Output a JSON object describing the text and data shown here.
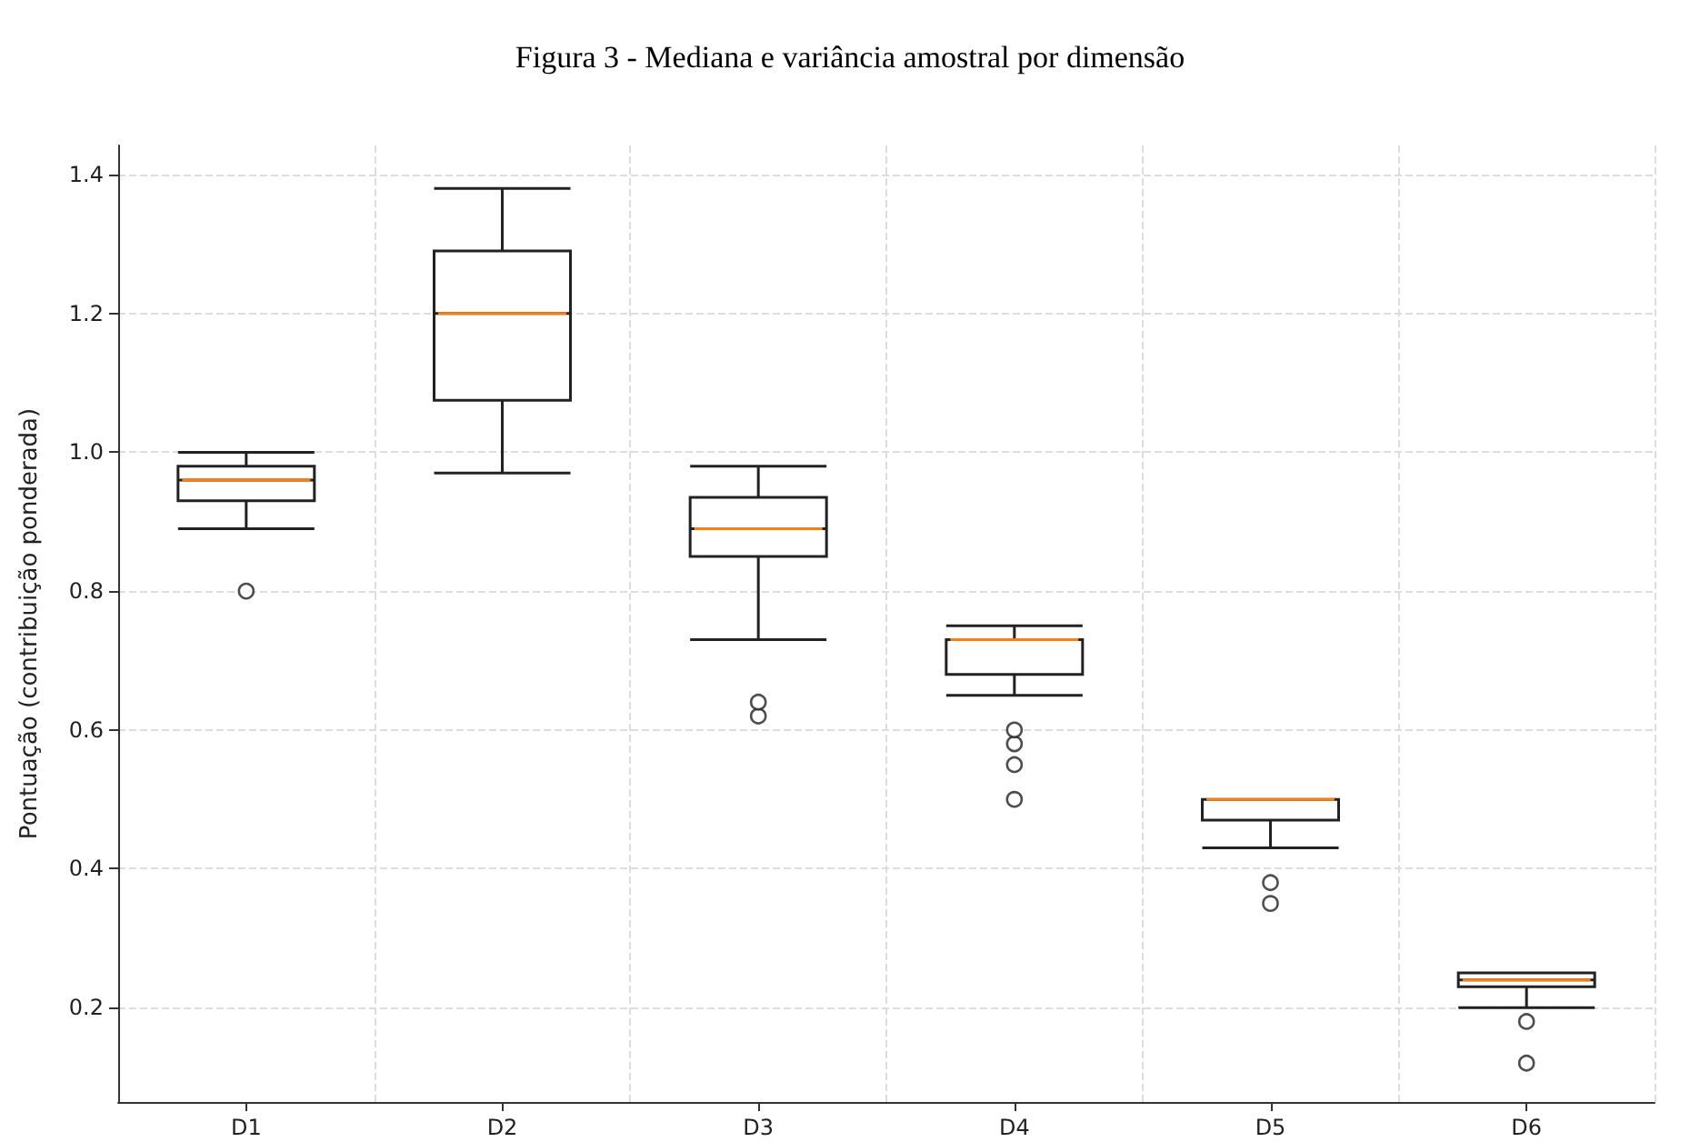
{
  "chart_data": {
    "type": "box",
    "title": "Figura 3 - Mediana e variância amostral por dimensão",
    "ylabel": "Pontuação (contribuição ponderada)",
    "categories": [
      "D1",
      "D2",
      "D3",
      "D4",
      "D5",
      "D6"
    ],
    "boxes": [
      {
        "low": 0.89,
        "q1": 0.93,
        "median": 0.96,
        "q3": 0.98,
        "high": 1.0,
        "outliers": [
          0.8
        ]
      },
      {
        "low": 0.97,
        "q1": 1.075,
        "median": 1.2,
        "q3": 1.29,
        "high": 1.38
      },
      {
        "low": 0.73,
        "q1": 0.85,
        "median": 0.89,
        "q3": 0.935,
        "high": 0.98,
        "outliers": [
          0.62,
          0.64
        ]
      },
      {
        "low": 0.65,
        "q1": 0.68,
        "median": 0.73,
        "q3": 0.73,
        "high": 0.75,
        "outliers": [
          0.5,
          0.55,
          0.58,
          0.6
        ]
      },
      {
        "low": 0.43,
        "q1": 0.47,
        "median": 0.5,
        "q3": 0.5,
        "high": 0.5,
        "outliers": [
          0.35,
          0.38
        ]
      },
      {
        "low": 0.2,
        "q1": 0.23,
        "median": 0.24,
        "q3": 0.25,
        "high": 0.25,
        "outliers": [
          0.12,
          0.18
        ]
      }
    ],
    "ylim": [
      0.064,
      1.442
    ],
    "yticks": [
      0.2,
      0.4,
      0.6,
      0.8,
      {
        "value": 1.0,
        "label": "1.0"
      },
      1.2,
      1.4
    ],
    "grid": true
  }
}
